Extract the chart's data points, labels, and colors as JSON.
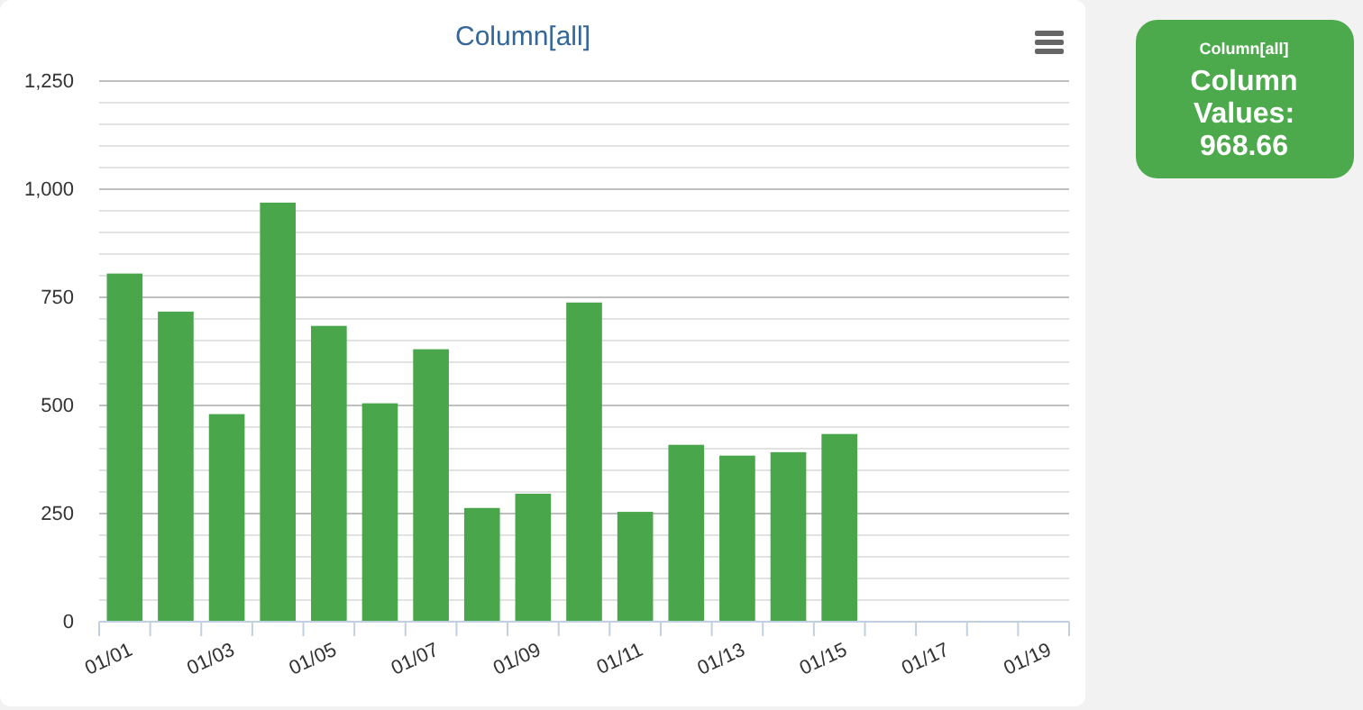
{
  "chart_data": [
    {
      "type": "bar",
      "title": "Column[all]",
      "categories": [
        "01/01",
        null,
        "01/03",
        null,
        "01/05",
        null,
        "01/07",
        null,
        "01/09",
        null,
        "01/11",
        null,
        "01/13",
        null,
        "01/15",
        null,
        "01/17",
        null,
        "01/19"
      ],
      "values": [
        805,
        717,
        480,
        969,
        684,
        505,
        630,
        263,
        296,
        738,
        254,
        409,
        384,
        392,
        434,
        null,
        null,
        null,
        null
      ],
      "color": "#4aa64a",
      "ylim": [
        0,
        1250
      ],
      "yticks": [
        0,
        {
          "value": 50,
          "label": null
        },
        {
          "value": 100,
          "label": null
        },
        {
          "value": 150,
          "label": null
        },
        {
          "value": 200,
          "label": null
        },
        250,
        {
          "value": 300,
          "label": null
        },
        {
          "value": 350,
          "label": null
        },
        {
          "value": 400,
          "label": null
        },
        {
          "value": 450,
          "label": null
        },
        500,
        {
          "value": 550,
          "label": null
        },
        {
          "value": 600,
          "label": null
        },
        {
          "value": 650,
          "label": null
        },
        {
          "value": 700,
          "label": null
        },
        750,
        {
          "value": 800,
          "label": null
        },
        {
          "value": 850,
          "label": null
        },
        {
          "value": 900,
          "label": null
        },
        {
          "value": 950,
          "label": null
        },
        {
          "value": 1000,
          "label": "1,000"
        },
        {
          "value": 1050,
          "label": null
        },
        {
          "value": 1100,
          "label": null
        },
        {
          "value": 1150,
          "label": null
        },
        {
          "value": 1200,
          "label": null
        },
        {
          "value": 1250,
          "label": "1,250"
        }
      ],
      "grid": "y"
    },
    {
      "type": "other",
      "title": "Column[all]",
      "annotations": [
        "Column Values: 968.66"
      ]
    }
  ]
}
